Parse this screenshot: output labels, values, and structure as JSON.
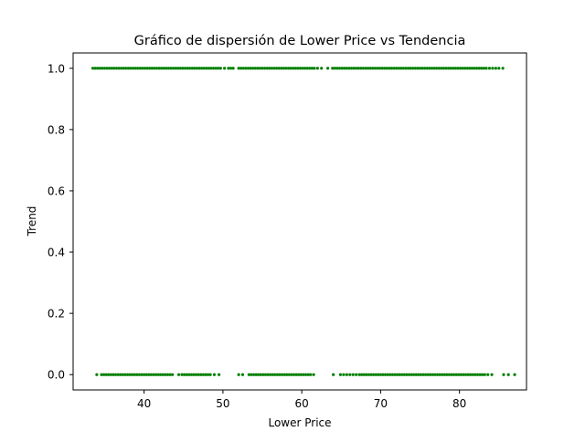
{
  "chart_data": {
    "type": "scatter",
    "title": "Gráfico de dispersión de Lower Price vs Tendencia",
    "xlabel": "Lower Price",
    "ylabel": "Trend",
    "xlim": [
      31,
      88.5
    ],
    "ylim": [
      -0.05,
      1.05
    ],
    "xticks": [
      40,
      50,
      60,
      70,
      80
    ],
    "yticks": [
      0.0,
      0.2,
      0.4,
      0.6,
      0.8,
      1.0
    ],
    "ytick_labels": [
      "0.0",
      "0.2",
      "0.4",
      "0.6",
      "0.8",
      "1.0"
    ],
    "grid": false,
    "marker_color": "#008000",
    "series": [
      {
        "trend": 1,
        "x": [
          33.5,
          33.8,
          34.1,
          34.4,
          34.7,
          35.0,
          35.3,
          35.6,
          35.9,
          36.2,
          36.5,
          36.8,
          37.1,
          37.4,
          37.7,
          38.0,
          38.3,
          38.6,
          38.9,
          39.2,
          39.5,
          39.8,
          40.1,
          40.4,
          40.7,
          41.0,
          41.3,
          41.6,
          41.9,
          42.2,
          42.5,
          42.8,
          43.1,
          43.4,
          43.7,
          44.0,
          44.3,
          44.6,
          44.9,
          45.2,
          45.5,
          45.8,
          46.1,
          46.4,
          46.7,
          47.0,
          47.3,
          47.6,
          47.9,
          48.2,
          48.5,
          48.8,
          49.1,
          49.4,
          49.7,
          50.2,
          50.7,
          51.0,
          51.3,
          52.0,
          52.3,
          52.6,
          52.9,
          53.2,
          53.5,
          53.8,
          54.1,
          54.4,
          54.7,
          55.0,
          55.3,
          55.6,
          55.9,
          56.2,
          56.5,
          56.8,
          57.1,
          57.4,
          57.7,
          58.0,
          58.3,
          58.6,
          58.9,
          59.2,
          59.5,
          59.8,
          60.1,
          60.4,
          60.7,
          61.0,
          61.3,
          61.6,
          62.0,
          62.5,
          63.3,
          63.9,
          64.2,
          64.5,
          64.8,
          65.1,
          65.4,
          65.7,
          66.0,
          66.3,
          66.6,
          66.9,
          67.2,
          67.5,
          67.8,
          68.1,
          68.4,
          68.7,
          69.0,
          69.3,
          69.6,
          69.9,
          70.2,
          70.5,
          70.8,
          71.1,
          71.4,
          71.7,
          72.0,
          72.3,
          72.6,
          72.9,
          73.2,
          73.5,
          73.8,
          74.1,
          74.4,
          74.7,
          75.0,
          75.3,
          75.6,
          75.9,
          76.2,
          76.5,
          76.8,
          77.1,
          77.4,
          77.7,
          78.0,
          78.3,
          78.6,
          78.9,
          79.2,
          79.5,
          79.8,
          80.1,
          80.4,
          80.7,
          81.0,
          81.3,
          81.6,
          81.9,
          82.2,
          82.5,
          82.8,
          83.1,
          83.4,
          83.8,
          84.2,
          84.6,
          85.0,
          85.5
        ]
      },
      {
        "trend": 0,
        "x": [
          34.0,
          34.6,
          34.9,
          35.2,
          35.5,
          35.8,
          36.1,
          36.4,
          36.7,
          37.0,
          37.3,
          37.6,
          37.9,
          38.2,
          38.5,
          38.8,
          39.1,
          39.4,
          39.7,
          40.0,
          40.3,
          40.6,
          40.9,
          41.2,
          41.5,
          41.8,
          42.1,
          42.4,
          42.7,
          43.0,
          43.3,
          43.6,
          44.4,
          44.8,
          45.1,
          45.4,
          45.7,
          46.0,
          46.3,
          46.6,
          46.9,
          47.2,
          47.5,
          47.8,
          48.1,
          48.4,
          48.9,
          49.5,
          52.0,
          52.5,
          53.3,
          53.6,
          53.9,
          54.2,
          54.5,
          54.8,
          55.1,
          55.4,
          55.7,
          56.0,
          56.3,
          56.6,
          56.9,
          57.2,
          57.5,
          57.8,
          58.1,
          58.4,
          58.7,
          59.0,
          59.3,
          59.6,
          59.9,
          60.2,
          60.5,
          60.8,
          61.1,
          61.5,
          64.0,
          64.9,
          65.3,
          65.7,
          66.1,
          66.5,
          66.9,
          67.3,
          67.6,
          67.9,
          68.2,
          68.5,
          68.8,
          69.1,
          69.4,
          69.7,
          70.0,
          70.3,
          70.6,
          70.9,
          71.2,
          71.5,
          71.8,
          72.1,
          72.4,
          72.7,
          73.0,
          73.3,
          73.6,
          73.9,
          74.2,
          74.5,
          74.8,
          75.1,
          75.4,
          75.7,
          76.0,
          76.3,
          76.6,
          76.9,
          77.2,
          77.5,
          77.8,
          78.1,
          78.4,
          78.7,
          79.0,
          79.3,
          79.6,
          79.9,
          80.2,
          80.5,
          80.8,
          81.1,
          81.4,
          81.7,
          82.0,
          82.3,
          82.6,
          82.9,
          83.2,
          83.6,
          84.1,
          85.6,
          86.2,
          87.0
        ]
      }
    ]
  }
}
